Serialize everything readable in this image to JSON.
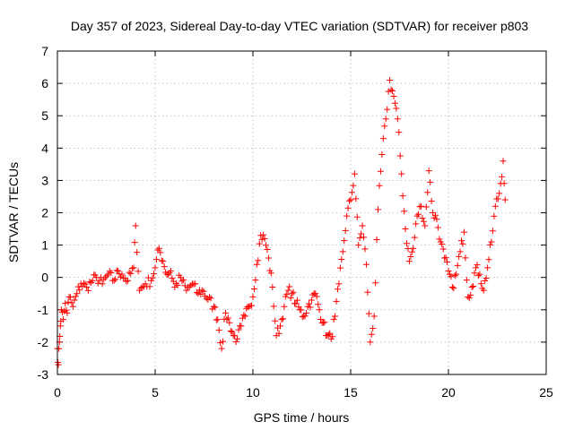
{
  "chart_data": {
    "type": "scatter",
    "title": "Day 357 of 2023, Sidereal Day-to-day VTEC variation (SDTVAR) for receiver p803",
    "xlabel": "GPS time / hours",
    "ylabel": "SDTVAR / TECUs",
    "xlim": [
      0,
      25
    ],
    "ylim": [
      -3,
      7
    ],
    "xticks": [
      0,
      5,
      10,
      15,
      20,
      25
    ],
    "yticks": [
      -3,
      -2,
      -1,
      0,
      1,
      2,
      3,
      4,
      5,
      6,
      7
    ],
    "grid": true,
    "marker": "+",
    "series": [
      {
        "name": "SDTVAR",
        "color": "#ff0000",
        "x": [
          0.0,
          0.05,
          0.1,
          0.15,
          0.2,
          0.3,
          0.4,
          0.5,
          0.6,
          0.8,
          1.0,
          1.2,
          1.5,
          1.8,
          2.0,
          2.3,
          2.6,
          2.9,
          3.1,
          3.3,
          3.6,
          3.9,
          4.0,
          4.2,
          4.5,
          4.8,
          5.0,
          5.2,
          5.4,
          5.6,
          5.8,
          6.0,
          6.3,
          6.6,
          6.9,
          7.2,
          7.4,
          8.0,
          8.2,
          8.4,
          8.6,
          8.8,
          9.0,
          9.2,
          9.4,
          9.6,
          9.8,
          10.0,
          10.2,
          10.4,
          10.6,
          10.8,
          11.0,
          11.2,
          11.4,
          11.6,
          11.8,
          12.0,
          12.2,
          12.4,
          12.6,
          12.8,
          13.0,
          13.2,
          13.4,
          13.6,
          13.8,
          14.0,
          14.2,
          14.4,
          14.6,
          14.8,
          15.0,
          15.2,
          15.4,
          15.6,
          15.8,
          16.0,
          16.2,
          16.4,
          16.6,
          16.8,
          17.0,
          17.2,
          17.4,
          17.6,
          17.8,
          18.0,
          18.2,
          18.4,
          18.6,
          18.8,
          19.0,
          19.2,
          19.4,
          19.6,
          19.8,
          20.0,
          20.2,
          20.4,
          20.6,
          20.8,
          21.0,
          21.2,
          21.4,
          21.6,
          21.8,
          22.0,
          22.2,
          22.4,
          22.6,
          22.8,
          22.9
        ],
        "y": [
          -2.2,
          -2.7,
          -2.0,
          -1.5,
          -1.0,
          -1.3,
          -0.8,
          -1.1,
          -0.6,
          -0.9,
          -0.5,
          -0.2,
          -0.3,
          -0.1,
          0.0,
          -0.2,
          0.1,
          -0.1,
          0.2,
          0.1,
          -0.1,
          0.3,
          1.6,
          -0.4,
          -0.2,
          -0.1,
          0.3,
          0.9,
          0.5,
          0.1,
          0.2,
          -0.3,
          0.0,
          -0.4,
          -0.2,
          -0.5,
          -0.4,
          -0.9,
          -1.3,
          -2.2,
          -1.1,
          -1.4,
          -1.8,
          -1.9,
          -1.5,
          -1.2,
          -0.9,
          -0.6,
          0.4,
          1.3,
          1.2,
          0.6,
          -0.3,
          -1.8,
          -1.5,
          -0.9,
          -0.4,
          -0.5,
          -0.8,
          -1.0,
          -1.2,
          -0.9,
          -0.7,
          -0.5,
          -1.0,
          -1.4,
          -1.8,
          -1.9,
          -1.2,
          -0.2,
          0.8,
          1.9,
          2.4,
          3.2,
          1.0,
          1.6,
          0.4,
          -2.0,
          -1.2,
          2.1,
          3.8,
          4.9,
          6.1,
          5.6,
          4.9,
          3.2,
          1.5,
          0.5,
          0.9,
          1.9,
          2.2,
          1.6,
          3.3,
          2.0,
          1.8,
          1.1,
          0.6,
          0.2,
          -0.3,
          0.1,
          0.8,
          1.4,
          -0.6,
          -0.3,
          0.3,
          0.1,
          -0.4,
          0.3,
          1.1,
          2.2,
          2.6,
          3.6,
          2.4
        ]
      }
    ]
  }
}
